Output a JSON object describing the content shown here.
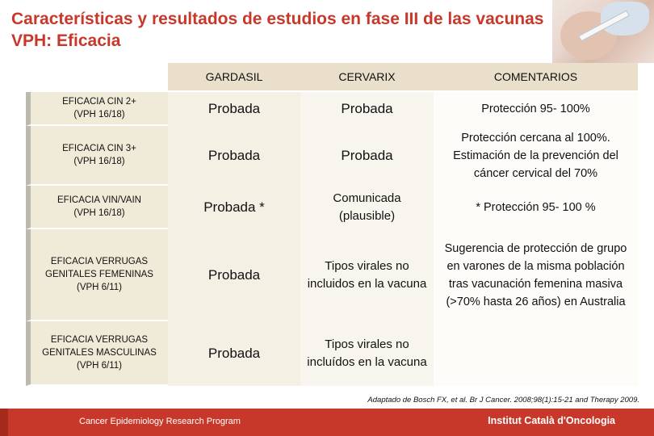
{
  "title": "Características y resultados de estudios en fase III de las vacunas VPH: Eficacia",
  "photo": {
    "icon": "vaccination-photo"
  },
  "table": {
    "headers": [
      "",
      "GARDASIL",
      "CERVARIX",
      "COMENTARIOS"
    ],
    "rows": [
      {
        "label": "EFICACIA CIN 2+\n(VPH 16/18)",
        "gardasil": "Probada",
        "cervarix": "Probada",
        "comment": "Protección 95- 100%"
      },
      {
        "label": "EFICACIA CIN 3+\n(VPH 16/18)",
        "gardasil": "Probada",
        "cervarix": "Probada",
        "comment": "Protección cercana al 100%. Estimación de la prevención del cáncer cervical del 70%"
      },
      {
        "label": "EFICACIA VIN/VAIN\n(VPH 16/18)",
        "gardasil": "Probada *",
        "cervarix": "Comunicada (plausible)",
        "comment": "* Protección 95- 100 %"
      },
      {
        "label": "EFICACIA VERRUGAS GENITALES FEMENINAS\n(VPH 6/11)",
        "gardasil": "Probada",
        "cervarix": "Tipos virales no incluidos en la vacuna",
        "comment": "Sugerencia de protección de grupo en varones de la misma población tras vacunación femenina masiva (>70% hasta 26 años) en Australia"
      },
      {
        "label": "EFICACIA VERRUGAS GENITALES MASCULINAS\n(VPH 6/11)",
        "gardasil": "Probada",
        "cervarix": "Tipos virales no incluídos en la vacuna",
        "comment": ""
      }
    ]
  },
  "citation": "Adaptado de Bosch FX, et al. Br J Cancer. 2008;98(1):15-21 and Therapy 2009.",
  "footer": {
    "left": "Cancer Epidemiology  Research Program",
    "right": "Institut Català d'Oncologia"
  },
  "colors": {
    "accent": "#c8382a",
    "header_bg": "#e9dfca"
  }
}
